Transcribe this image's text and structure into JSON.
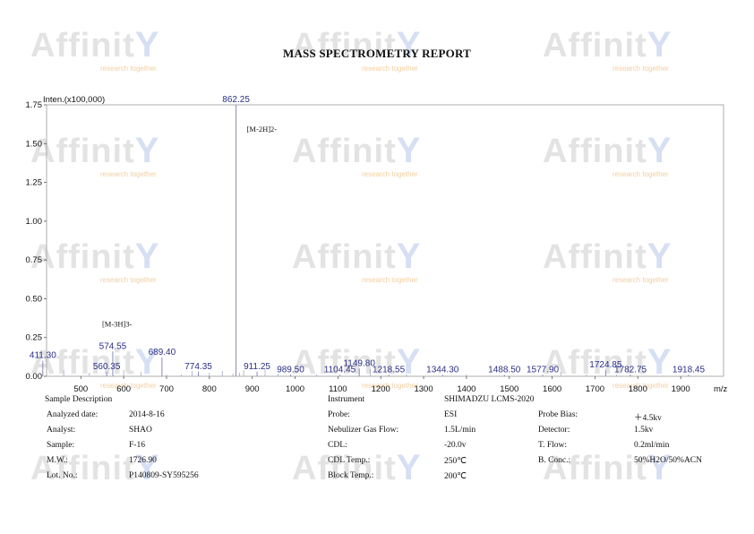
{
  "report": {
    "title": "MASS SPECTROMETRY REPORT",
    "watermark": {
      "brand": "Affinit",
      "tagline": "research together"
    }
  },
  "chart_data": {
    "type": "bar",
    "ylabel": "Inten.(x100,000)",
    "xlabel": "m/z",
    "xlim": [
      420,
      2000
    ],
    "ylim": [
      0,
      1.75
    ],
    "x_ticks": [
      "500",
      "600",
      "700",
      "800",
      "900",
      "1000",
      "1100",
      "1200",
      "1300",
      "1400",
      "1500",
      "1600",
      "1700",
      "1800",
      "1900"
    ],
    "y_ticks": [
      "0.00",
      "0.25",
      "0.50",
      "0.75",
      "1.00",
      "1.25",
      "1.50",
      "1.75"
    ],
    "peaks": [
      {
        "x": 411.3,
        "y": 0.1,
        "label": "411.30"
      },
      {
        "x": 560.35,
        "y": 0.03,
        "label": "560.35"
      },
      {
        "x": 574.55,
        "y": 0.16,
        "label": "574.55"
      },
      {
        "x": 689.4,
        "y": 0.12,
        "label": "689.40"
      },
      {
        "x": 774.35,
        "y": 0.03,
        "label": "774.35"
      },
      {
        "x": 862.25,
        "y": 1.75,
        "label": "862.25"
      },
      {
        "x": 911.25,
        "y": 0.03,
        "label": "911.25"
      },
      {
        "x": 989.5,
        "y": 0.01,
        "label": "989.50"
      },
      {
        "x": 1104.45,
        "y": 0.01,
        "label": "1104.45"
      },
      {
        "x": 1149.8,
        "y": 0.05,
        "label": "1149.80"
      },
      {
        "x": 1218.55,
        "y": 0.01,
        "label": "1218.55"
      },
      {
        "x": 1344.3,
        "y": 0.01,
        "label": "1344.30"
      },
      {
        "x": 1488.5,
        "y": 0.01,
        "label": "1488.50"
      },
      {
        "x": 1577.9,
        "y": 0.01,
        "label": "1577.90"
      },
      {
        "x": 1724.85,
        "y": 0.04,
        "label": "1724.85"
      },
      {
        "x": 1782.75,
        "y": 0.01,
        "label": "1782.75"
      },
      {
        "x": 1918.45,
        "y": 0.01,
        "label": "1918.45"
      }
    ],
    "annotations": [
      {
        "x": 574.55,
        "text": "[M-3H]3-"
      },
      {
        "x": 862.25,
        "text": "[M-2H]2-"
      }
    ]
  },
  "info_left": [
    {
      "label": "Sample Description",
      "value": ""
    },
    {
      "label": "Analyzed date:",
      "value": "2014-8-16"
    },
    {
      "label": "Analyst:",
      "value": "SHAO"
    },
    {
      "label": "Sample:",
      "value": "F-16"
    },
    {
      "label": "M.W.:",
      "value": "1726.90"
    },
    {
      "label": "Lot. No.:",
      "value": "P140809-SY595256"
    }
  ],
  "info_right": [
    {
      "label": "Instrument",
      "value": "SHIMADZU LCMS-2020",
      "label2": "",
      "value2": ""
    },
    {
      "label": "Probe:",
      "value": "ESI",
      "label2": "Probe Bias:",
      "value2": "＋4.5kv"
    },
    {
      "label": "Nebulizer Gas Flow:",
      "value": "1.5L/min",
      "label2": "Detector:",
      "value2": "1.5kv"
    },
    {
      "label": "CDL:",
      "value": "-20.0v",
      "label2": "T. Flow:",
      "value2": "0.2ml/min"
    },
    {
      "label": "CDL Temp.:",
      "value": "250℃",
      "label2": "B. Conc.:",
      "value2": "50%H2O/50%ACN"
    },
    {
      "label": "Block Temp.:",
      "value": "200℃",
      "label2": "",
      "value2": ""
    }
  ]
}
